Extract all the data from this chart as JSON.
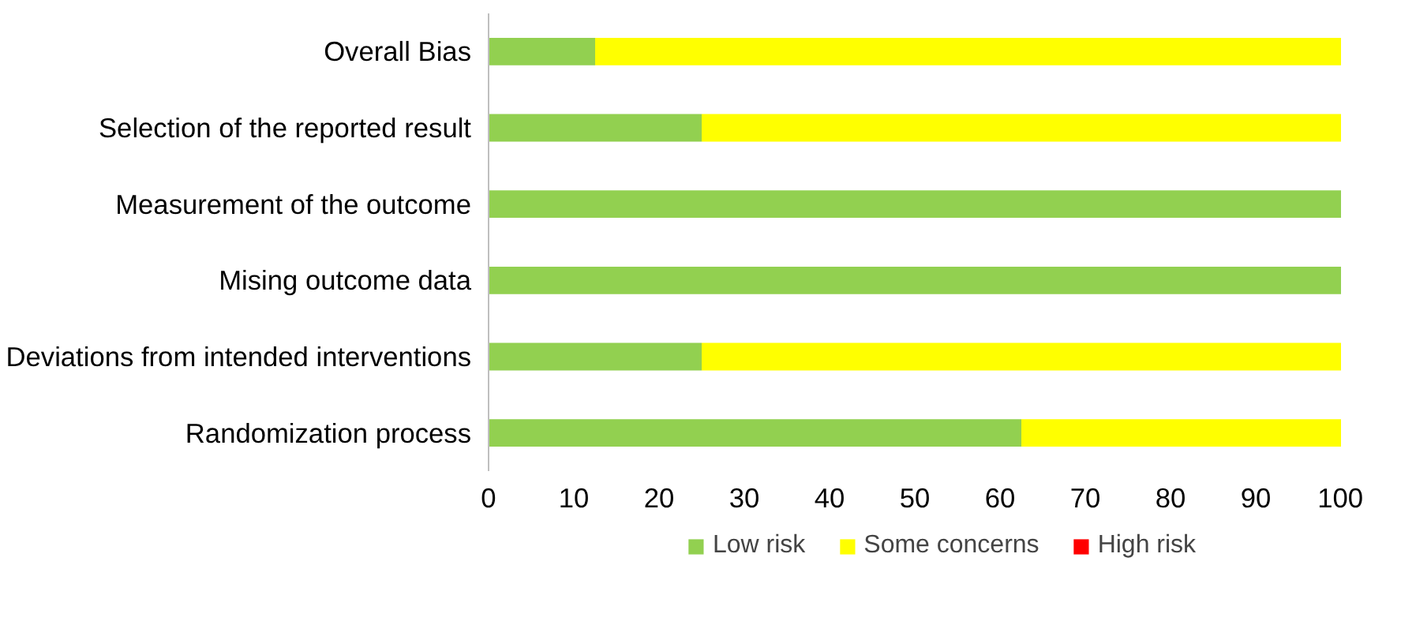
{
  "chart_data": {
    "type": "bar",
    "orientation": "horizontal",
    "stacked": true,
    "categories": [
      "Overall Bias",
      "Selection of the reported result",
      "Measurement of the outcome",
      "Mising outcome data",
      "Deviations from intended interventions",
      "Randomization process"
    ],
    "series": [
      {
        "name": "Low risk",
        "color": "#92d050",
        "values": [
          12.5,
          25,
          100,
          100,
          25,
          62.5
        ]
      },
      {
        "name": "Some concerns",
        "color": "#ffff00",
        "values": [
          87.5,
          75,
          0,
          0,
          75,
          37.5
        ]
      },
      {
        "name": "High risk",
        "color": "#ff0000",
        "values": [
          0,
          0,
          0,
          0,
          0,
          0
        ]
      }
    ],
    "xlim": [
      0,
      100
    ],
    "xticks": [
      0,
      10,
      20,
      30,
      40,
      50,
      60,
      70,
      80,
      90,
      100
    ],
    "grid": false,
    "legend": "bottom"
  }
}
